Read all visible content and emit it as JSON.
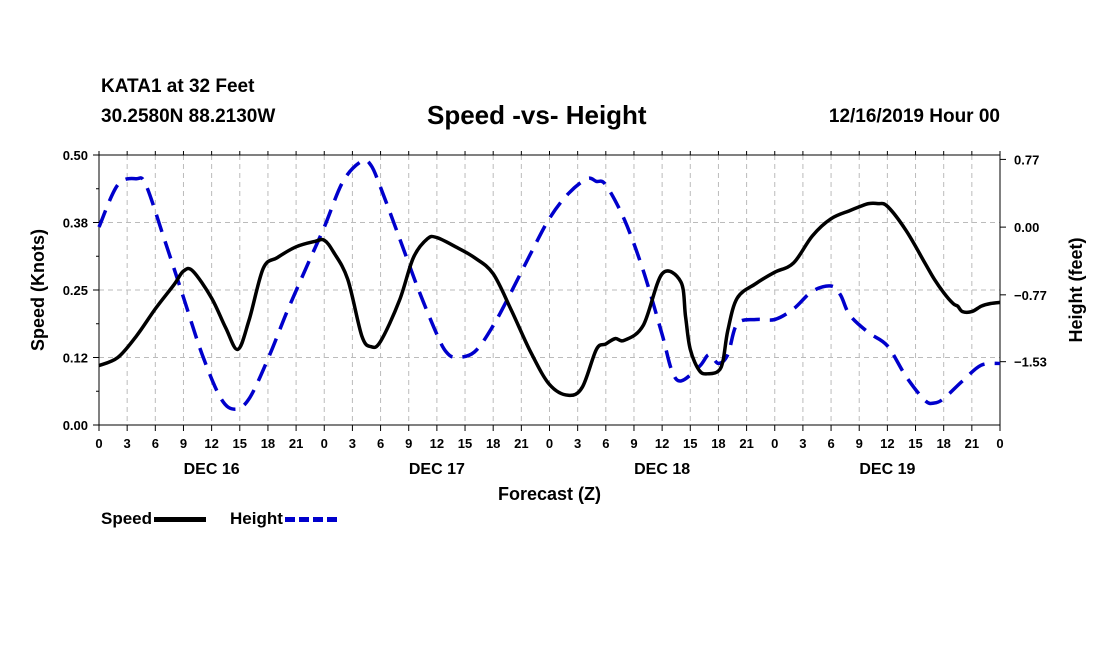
{
  "header": {
    "station": "KATA1 at 32 Feet",
    "coords": "30.2580N 88.2130W",
    "title": "Speed -vs- Height",
    "timestamp": "12/16/2019 Hour 00"
  },
  "legend": {
    "speed_label": "Speed",
    "height_label": "Height"
  },
  "colors": {
    "speed": "#000000",
    "height": "#0000cc",
    "grid": "#bbbbbb"
  },
  "chart_data": {
    "type": "line",
    "title": "Speed -vs- Height",
    "xlabel": "Forecast (Z)",
    "ylabel": "Speed (Knots)",
    "y2label": "Height (feet)",
    "x_unit": "hours since 12/16/2019 00Z",
    "xlim": [
      0,
      96
    ],
    "ylim": [
      0,
      0.5
    ],
    "y2lim": [
      -2.25,
      0.82
    ],
    "y_ticks": [
      "0.00",
      "0.12",
      "0.25",
      "0.38",
      "0.50"
    ],
    "y_tick_values": [
      0,
      0.125,
      0.25,
      0.375,
      0.5
    ],
    "y2_ticks": [
      "0.77",
      "0.00",
      "−0.77",
      "−1.53"
    ],
    "y2_tick_values": [
      0.77,
      0,
      -0.77,
      -1.53
    ],
    "x_tick_labels": [
      "0",
      "3",
      "6",
      "9",
      "12",
      "15",
      "18",
      "21",
      "0",
      "3",
      "6",
      "9",
      "12",
      "15",
      "18",
      "21",
      "0",
      "3",
      "6",
      "9",
      "12",
      "15",
      "18",
      "21",
      "0",
      "3",
      "6",
      "9",
      "12",
      "15",
      "18",
      "21",
      "0"
    ],
    "day_labels": [
      {
        "label": "DEC 16",
        "x": 12
      },
      {
        "label": "DEC 17",
        "x": 36
      },
      {
        "label": "DEC 18",
        "x": 60
      },
      {
        "label": "DEC 19",
        "x": 84
      }
    ],
    "grid": true,
    "legend_position": "bottom-left",
    "series": [
      {
        "name": "Speed",
        "axis": "left",
        "style": "solid",
        "x": [
          0,
          2,
          4,
          6,
          8,
          9,
          10,
          12,
          13.5,
          14.8,
          16,
          17.5,
          19,
          21,
          23,
          24,
          25,
          26.5,
          28,
          29,
          30,
          32,
          33.5,
          35,
          36,
          38,
          40,
          42,
          44,
          46,
          48,
          50,
          51.5,
          53,
          54,
          55,
          56,
          58,
          60,
          62,
          62.5,
          63,
          64,
          65,
          66,
          66.5,
          67,
          68,
          70,
          72,
          74,
          76,
          78,
          80,
          81,
          82,
          83,
          84,
          86,
          88,
          89,
          90,
          91,
          91.5,
          92,
          93,
          94,
          95,
          96
        ],
        "y": [
          0.11,
          0.125,
          0.165,
          0.215,
          0.26,
          0.285,
          0.285,
          0.235,
          0.18,
          0.14,
          0.195,
          0.29,
          0.31,
          0.33,
          0.34,
          0.342,
          0.32,
          0.27,
          0.165,
          0.145,
          0.155,
          0.23,
          0.31,
          0.345,
          0.347,
          0.33,
          0.31,
          0.28,
          0.21,
          0.135,
          0.075,
          0.055,
          0.07,
          0.14,
          0.15,
          0.16,
          0.157,
          0.185,
          0.28,
          0.265,
          0.2,
          0.14,
          0.1,
          0.095,
          0.1,
          0.12,
          0.175,
          0.235,
          0.262,
          0.283,
          0.3,
          0.35,
          0.382,
          0.397,
          0.404,
          0.41,
          0.41,
          0.405,
          0.36,
          0.3,
          0.27,
          0.245,
          0.225,
          0.22,
          0.21,
          0.21,
          0.22,
          0.225,
          0.227
        ]
      },
      {
        "name": "Height",
        "axis": "right",
        "style": "dashed",
        "x": [
          0,
          2,
          4,
          5,
          7,
          9,
          11,
          13,
          14.5,
          16,
          18,
          20,
          22,
          24,
          26,
          28,
          29,
          30,
          32,
          34,
          36,
          37,
          38,
          40,
          42,
          44,
          46,
          48,
          50,
          52,
          53,
          54,
          56,
          58,
          60,
          61,
          62,
          64,
          65,
          66,
          67,
          68,
          70,
          72,
          74,
          76,
          78,
          79,
          80,
          82,
          84,
          86,
          88,
          89,
          90,
          92,
          94,
          96
        ],
        "y": [
          0,
          0.48,
          0.55,
          0.48,
          -0.15,
          -0.8,
          -1.45,
          -1.95,
          -2.07,
          -1.95,
          -1.5,
          -0.97,
          -0.48,
          0,
          0.52,
          0.75,
          0.7,
          0.45,
          -0.12,
          -0.7,
          -1.22,
          -1.42,
          -1.48,
          -1.42,
          -1.12,
          -0.72,
          -0.3,
          0.1,
          0.38,
          0.55,
          0.52,
          0.48,
          0.08,
          -0.5,
          -1.22,
          -1.62,
          -1.75,
          -1.58,
          -1.45,
          -1.55,
          -1.45,
          -1.1,
          -1.05,
          -1.05,
          -0.93,
          -0.73,
          -0.67,
          -0.77,
          -1.0,
          -1.2,
          -1.35,
          -1.7,
          -1.97,
          -2.0,
          -1.95,
          -1.75,
          -1.57,
          -1.55
        ]
      }
    ]
  }
}
